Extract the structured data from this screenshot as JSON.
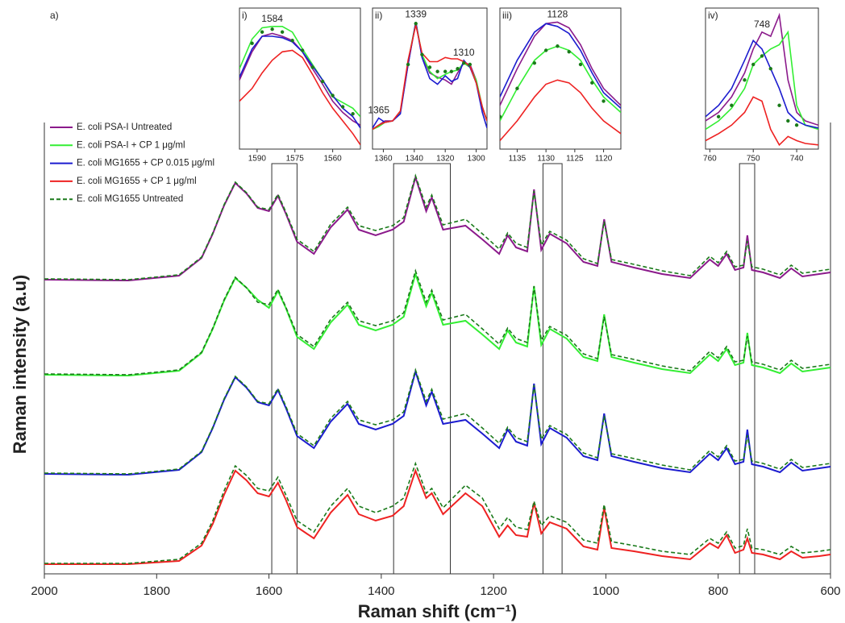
{
  "chart_data": [
    {
      "type": "line",
      "title": "a)",
      "xlabel": "Raman shift (cm⁻¹)",
      "ylabel": "Raman intensity (a.u)",
      "xlim": [
        2000,
        600
      ],
      "ylim": [
        0,
        560
      ],
      "xticks": [
        2000,
        1800,
        1600,
        1400,
        1200,
        1000,
        800,
        600
      ],
      "legend": "upper left",
      "highlight_ranges": [
        [
          1595,
          1550
        ],
        [
          1378,
          1277
        ],
        [
          1112,
          1078
        ],
        [
          762,
          735
        ]
      ],
      "x": [
        2000,
        1850,
        1760,
        1720,
        1700,
        1680,
        1660,
        1640,
        1620,
        1600,
        1584,
        1570,
        1550,
        1520,
        1490,
        1460,
        1440,
        1410,
        1380,
        1360,
        1339,
        1320,
        1310,
        1290,
        1250,
        1220,
        1190,
        1175,
        1160,
        1140,
        1128,
        1115,
        1100,
        1070,
        1040,
        1015,
        1003,
        990,
        950,
        900,
        850,
        815,
        800,
        785,
        770,
        755,
        748,
        740,
        720,
        690,
        670,
        650,
        620,
        600
      ],
      "series": [
        {
          "name": "E. coli PSA-I Untreated",
          "color": "#8b1a8b",
          "values": [
            365,
            364,
            370,
            392,
            422,
            457,
            485,
            472,
            454,
            450,
            469,
            447,
            412,
            397,
            430,
            452,
            427,
            420,
            427,
            437,
            492,
            450,
            467,
            427,
            432,
            415,
            397,
            420,
            405,
            400,
            477,
            402,
            422,
            410,
            387,
            382,
            440,
            387,
            380,
            372,
            367,
            390,
            382,
            397,
            377,
            380,
            420,
            377,
            374,
            367,
            379,
            369,
            372,
            374
          ],
          "reference_values": [
            366,
            365,
            371,
            393,
            423,
            458,
            486,
            473,
            455,
            452,
            471,
            449,
            415,
            400,
            434,
            455,
            432,
            426,
            432,
            442,
            494,
            455,
            470,
            433,
            440,
            422,
            403,
            423,
            410,
            405,
            475,
            408,
            425,
            414,
            391,
            385,
            437,
            390,
            384,
            376,
            370,
            394,
            386,
            400,
            381,
            383,
            413,
            381,
            378,
            371,
            383,
            373,
            376,
            378
          ]
        },
        {
          "name": "E. coli PSA-I + CP 1 μg/ml",
          "color": "#33ee33",
          "values": [
            247,
            246,
            252,
            274,
            304,
            339,
            367,
            355,
            340,
            330,
            351,
            330,
            294,
            279,
            312,
            334,
            309,
            302,
            309,
            319,
            372,
            332,
            349,
            309,
            314,
            297,
            279,
            302,
            287,
            282,
            357,
            284,
            304,
            292,
            269,
            264,
            322,
            269,
            262,
            254,
            249,
            272,
            264,
            279,
            259,
            262,
            299,
            259,
            256,
            249,
            261,
            251,
            254,
            256
          ],
          "reference_values": [
            248,
            247,
            253,
            275,
            305,
            340,
            368,
            355,
            337,
            334,
            353,
            331,
            297,
            282,
            316,
            337,
            314,
            308,
            314,
            324,
            376,
            337,
            352,
            315,
            322,
            304,
            285,
            305,
            292,
            287,
            357,
            290,
            307,
            296,
            273,
            267,
            319,
            272,
            266,
            258,
            252,
            276,
            268,
            282,
            263,
            265,
            295,
            263,
            260,
            253,
            265,
            255,
            258,
            260
          ]
        },
        {
          "name": "E. coli MG1655 + CP 0.015 μg/ml",
          "color": "#1c1ccf",
          "values": [
            124,
            123,
            129,
            151,
            181,
            216,
            244,
            231,
            213,
            209,
            228,
            206,
            171,
            156,
            189,
            211,
            186,
            179,
            186,
            196,
            251,
            209,
            226,
            186,
            191,
            174,
            156,
            179,
            164,
            159,
            236,
            161,
            181,
            169,
            146,
            141,
            199,
            146,
            139,
            131,
            126,
            149,
            141,
            156,
            136,
            139,
            179,
            136,
            133,
            126,
            138,
            128,
            131,
            133
          ],
          "reference_values": [
            125,
            124,
            130,
            152,
            182,
            217,
            245,
            232,
            214,
            211,
            230,
            208,
            174,
            159,
            193,
            214,
            191,
            185,
            191,
            201,
            253,
            214,
            229,
            192,
            199,
            181,
            162,
            182,
            169,
            164,
            234,
            167,
            184,
            173,
            150,
            144,
            196,
            149,
            143,
            135,
            129,
            153,
            145,
            159,
            140,
            142,
            172,
            140,
            137,
            130,
            142,
            132,
            135,
            137
          ]
        },
        {
          "name": "E. coli MG1655 + CP 1 μg/ml",
          "color": "#ee2222",
          "values": [
            12,
            12,
            16,
            35,
            62,
            98,
            128,
            116,
            100,
            96,
            113,
            92,
            58,
            44,
            76,
            98,
            74,
            66,
            72,
            84,
            128,
            94,
            100,
            74,
            100,
            84,
            46,
            60,
            48,
            46,
            88,
            50,
            64,
            56,
            34,
            30,
            82,
            32,
            28,
            22,
            18,
            38,
            32,
            48,
            26,
            30,
            44,
            26,
            24,
            18,
            28,
            20,
            22,
            24
          ],
          "reference_values": [
            13,
            13,
            18,
            38,
            66,
            103,
            134,
            122,
            106,
            103,
            120,
            98,
            66,
            52,
            84,
            106,
            84,
            76,
            84,
            94,
            137,
            100,
            106,
            82,
            110,
            94,
            56,
            70,
            58,
            55,
            90,
            60,
            72,
            64,
            42,
            38,
            86,
            40,
            35,
            28,
            24,
            44,
            38,
            52,
            32,
            35,
            56,
            32,
            30,
            24,
            34,
            26,
            28,
            30
          ]
        }
      ],
      "reference": {
        "name": "E. coli MG1655 Untreated",
        "color": "#1a7a1a",
        "dash": true
      }
    },
    {
      "type": "line",
      "label": "i)",
      "xlim": [
        1597,
        1549
      ],
      "ylim": [
        0,
        100
      ],
      "xticks": [
        1590,
        1575,
        1560
      ],
      "x": [
        1597,
        1592,
        1588,
        1584,
        1580,
        1576,
        1572,
        1568,
        1564,
        1560,
        1556,
        1552,
        1549
      ],
      "series": [
        {
          "color": "#8b1a8b",
          "values": [
            49,
            69,
            80,
            82,
            80,
            77,
            69,
            57,
            46,
            34,
            26,
            20,
            17
          ]
        },
        {
          "color": "#33ee33",
          "values": [
            57,
            78,
            86,
            87,
            87,
            83,
            71,
            60,
            49,
            37,
            33,
            29,
            23
          ]
        },
        {
          "color": "#1c1ccf",
          "values": [
            51,
            71,
            80,
            80,
            79,
            76,
            69,
            59,
            49,
            38,
            29,
            23,
            15
          ]
        },
        {
          "color": "#ee2222",
          "values": [
            34,
            43,
            54,
            63,
            69,
            70,
            65,
            53,
            40,
            29,
            20,
            11,
            3
          ]
        }
      ],
      "reference_values": [
        null,
        75,
        83,
        85,
        83,
        77,
        70,
        58,
        48,
        38,
        30,
        25,
        null
      ],
      "reference_color": "#1a7a1a",
      "annotations": [
        {
          "text": "1584",
          "x": 1584
        }
      ]
    },
    {
      "type": "line",
      "label": "ii)",
      "xlim": [
        1367,
        1293
      ],
      "ylim": [
        0,
        100
      ],
      "xticks": [
        1360,
        1340,
        1320,
        1300
      ],
      "x": [
        1367,
        1363,
        1359,
        1354,
        1349,
        1344,
        1339,
        1335,
        1330,
        1325,
        1320,
        1316,
        1312,
        1308,
        1304,
        1300,
        1296,
        1293
      ],
      "series": [
        {
          "color": "#8b1a8b",
          "values": [
            14,
            17,
            20,
            20,
            26,
            60,
            90,
            66,
            54,
            51,
            49,
            46,
            54,
            61,
            60,
            49,
            29,
            20
          ]
        },
        {
          "color": "#33ee33",
          "values": [
            14,
            16,
            19,
            20,
            26,
            62,
            90,
            67,
            55,
            50,
            53,
            55,
            56,
            61,
            58,
            49,
            30,
            20
          ]
        },
        {
          "color": "#1c1ccf",
          "values": [
            15,
            22,
            19,
            20,
            25,
            60,
            90,
            65,
            50,
            46,
            52,
            48,
            50,
            63,
            58,
            47,
            26,
            15
          ]
        },
        {
          "color": "#ee2222",
          "values": [
            14,
            17,
            19,
            20,
            27,
            63,
            88,
            68,
            62,
            62,
            65,
            64,
            64,
            62,
            59,
            47,
            30,
            20
          ]
        }
      ],
      "reference_values": [
        null,
        null,
        null,
        null,
        null,
        60,
        89,
        67,
        58,
        55,
        55,
        55,
        57,
        61,
        60,
        null,
        null,
        null
      ],
      "reference_color": "#1a7a1a",
      "annotations": [
        {
          "text": "1339",
          "x": 1339
        },
        {
          "text": "1310",
          "x": 1308
        },
        {
          "text": "1365",
          "x": 1363
        }
      ]
    },
    {
      "type": "line",
      "label": "iii)",
      "xlim": [
        1138,
        1117
      ],
      "ylim": [
        0,
        100
      ],
      "xticks": [
        1135,
        1130,
        1125,
        1120
      ],
      "x": [
        1138,
        1135,
        1132,
        1130,
        1128,
        1126,
        1124,
        1122,
        1120,
        1117
      ],
      "series": [
        {
          "color": "#8b1a8b",
          "values": [
            31,
            57,
            80,
            89,
            90,
            86,
            74,
            57,
            43,
            31
          ]
        },
        {
          "color": "#1c1ccf",
          "values": [
            37,
            63,
            83,
            89,
            87,
            82,
            70,
            54,
            40,
            29
          ]
        },
        {
          "color": "#33ee33",
          "values": [
            20,
            43,
            63,
            70,
            73,
            70,
            63,
            49,
            37,
            26
          ]
        },
        {
          "color": "#ee2222",
          "values": [
            6,
            20,
            37,
            46,
            49,
            47,
            40,
            29,
            20,
            11
          ]
        }
      ],
      "reference_values": [
        23,
        43,
        61,
        70,
        73,
        69,
        60,
        47,
        34,
        null
      ],
      "reference_color": "#1a7a1a",
      "annotations": [
        {
          "text": "1128",
          "x": 1128
        }
      ]
    },
    {
      "type": "line",
      "label": "iv)",
      "xlim": [
        761,
        735
      ],
      "ylim": [
        0,
        100
      ],
      "xticks": [
        760,
        750,
        740
      ],
      "x": [
        761,
        758,
        755,
        752,
        750,
        748,
        746,
        744,
        742,
        740,
        738,
        735
      ],
      "series": [
        {
          "color": "#8b1a8b",
          "values": [
            20,
            26,
            37,
            54,
            71,
            83,
            80,
            95,
            49,
            26,
            20,
            17
          ]
        },
        {
          "color": "#33ee33",
          "values": [
            14,
            20,
            29,
            43,
            60,
            66,
            71,
            74,
            83,
            31,
            17,
            14
          ]
        },
        {
          "color": "#1c1ccf",
          "values": [
            23,
            31,
            43,
            63,
            77,
            71,
            57,
            43,
            26,
            20,
            17,
            15
          ]
        },
        {
          "color": "#ee2222",
          "values": [
            6,
            11,
            17,
            26,
            37,
            34,
            14,
            3,
            9,
            6,
            4,
            3
          ]
        }
      ],
      "reference_values": [
        null,
        23,
        31,
        49,
        60,
        66,
        57,
        31,
        20,
        17,
        null,
        null
      ],
      "reference_color": "#1a7a1a",
      "annotations": [
        {
          "text": "748",
          "x": 748
        }
      ]
    }
  ]
}
